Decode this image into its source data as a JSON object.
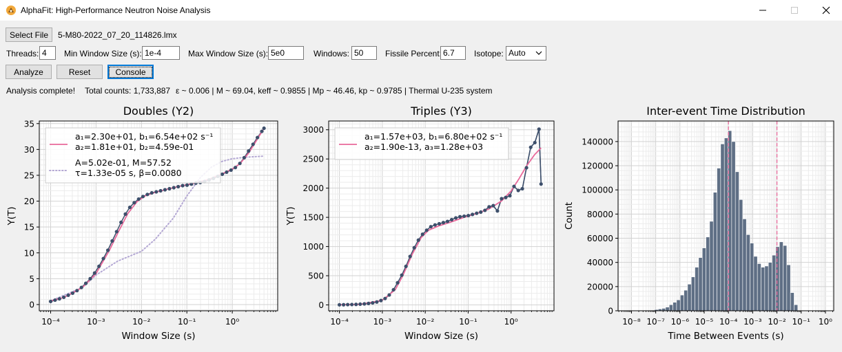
{
  "window": {
    "title": "AlphaFit: High-Performance Neutron Noise Analysis",
    "min_glyph": "—",
    "max_glyph": "☐",
    "close_glyph": "✕"
  },
  "file": {
    "button_label": "Select File",
    "filename": "5-M80-2022_07_20_114826.lmx"
  },
  "params": {
    "threads_label": "Threads:",
    "threads_value": "4",
    "min_window_label": "Min Window Size (s):",
    "min_window_value": "1e-4",
    "max_window_label": "Max Window Size (s):",
    "max_window_value": "5e0",
    "windows_label": "Windows:",
    "windows_value": "50",
    "fissile_label": "Fissile Percent:",
    "fissile_value": "6.7",
    "isotope_label": "Isotope:",
    "isotope_value": "Auto"
  },
  "actions": {
    "analyze_label": "Analyze",
    "reset_label": "Reset",
    "console_label": "Console"
  },
  "status": {
    "message": "Analysis complete!",
    "total_counts": "Total counts: 1,733,887",
    "summary": "ε ~ 0.006 | M ~ 69.04, keff ~ 0.9855 | Mp ~ 46.46, kp ~ 0.9785 | Thermal U-235 system"
  },
  "colors": {
    "fit": "#e8689a",
    "data": "#3d4f6b",
    "model": "#b3a7d3",
    "bar": "#5f6f85",
    "vline": "#e8689a"
  },
  "chart_data": [
    {
      "type": "line",
      "title": "Doubles (Y2)",
      "xlabel": "Window Size (s)",
      "ylabel": "Y(T)",
      "xscale": "log",
      "xlim": [
        5.62e-05,
        10
      ],
      "ylim": [
        -1.2,
        35.5
      ],
      "xticks": [
        0.0001,
        0.001,
        0.01,
        0.1,
        1
      ],
      "xtick_labels": [
        "10⁻⁴",
        "10⁻³",
        "10⁻²",
        "10⁻¹",
        "10⁰"
      ],
      "yticks": [
        0,
        5,
        10,
        15,
        20,
        25,
        30,
        35
      ],
      "ytick_labels": [
        "0",
        "5",
        "10",
        "15",
        "20",
        "25",
        "30",
        "35"
      ],
      "grid": true,
      "legend_position": "top-left",
      "legend": [
        {
          "label_line1": "a₁=2.30e+01, b₁=6.54e+02 s⁻¹",
          "label_line2": "a₂=1.81e+01, b₂=4.59e-01",
          "style": "solid"
        },
        {
          "label_line1": "A=5.02e-01, M=57.52",
          "label_line2": "τ=1.33e-05 s, β=0.0080",
          "style": "dotted"
        }
      ],
      "series": [
        {
          "style": "markers",
          "x": [
            0.0001,
            0.000125,
            0.000156,
            0.000195,
            0.000244,
            0.000305,
            0.000381,
            0.000476,
            0.000595,
            0.000744,
            0.00093,
            0.00116,
            0.00145,
            0.00182,
            0.00227,
            0.00284,
            0.00355,
            0.00444,
            0.00555,
            0.00693,
            0.00867,
            0.0108,
            0.0135,
            0.0169,
            0.0212,
            0.0264,
            0.033,
            0.0413,
            0.0516,
            0.0645,
            0.0807,
            0.101,
            0.126,
            0.158,
            0.197,
            0.246,
            0.308,
            0.385,
            0.481,
            0.601,
            0.751,
            0.939,
            1.17,
            1.47,
            1.83,
            2.29,
            2.87,
            3.58,
            4.48,
            5.0
          ],
          "y": [
            0.6,
            0.85,
            1.1,
            1.4,
            1.8,
            2.2,
            2.7,
            3.3,
            4.1,
            5.0,
            6.1,
            7.4,
            8.9,
            10.5,
            12.3,
            14.1,
            15.9,
            17.5,
            18.8,
            19.7,
            20.4,
            20.9,
            21.3,
            21.6,
            21.8,
            22.0,
            22.2,
            22.4,
            22.6,
            22.8,
            23.0,
            23.1,
            23.3,
            23.5,
            23.6,
            23.8,
            24.1,
            24.4,
            24.8,
            25.2,
            25.6,
            26.0,
            26.5,
            27.3,
            28.4,
            29.7,
            31.0,
            32.3,
            33.5,
            34.1
          ]
        },
        {
          "style": "fit",
          "x": [
            0.0001,
            0.0002,
            0.0005,
            0.001,
            0.002,
            0.003,
            0.005,
            0.008,
            0.012,
            0.02,
            0.04,
            0.08,
            0.15,
            0.3,
            0.6,
            1.0,
            1.5,
            2.3,
            3.5,
            5.0
          ],
          "y": [
            0.7,
            1.4,
            3.3,
            6.0,
            10.6,
            13.8,
            17.6,
            19.9,
            21.0,
            21.7,
            22.4,
            23.0,
            23.5,
            24.2,
            25.3,
            26.2,
            27.3,
            29.3,
            31.9,
            34.1
          ]
        },
        {
          "style": "dotted",
          "x": [
            0.0001,
            0.0005,
            0.001,
            0.003,
            0.01,
            0.02,
            0.05,
            0.1,
            0.2,
            0.35,
            0.6,
            1.0,
            2.0,
            5.0
          ],
          "y": [
            0.7,
            3.3,
            5.7,
            8.4,
            10.3,
            12.6,
            16.7,
            21.0,
            24.6,
            26.6,
            27.7,
            28.2,
            28.5,
            28.7
          ]
        }
      ]
    },
    {
      "type": "line",
      "title": "Triples (Y3)",
      "xlabel": "Window Size (s)",
      "ylabel": "Y(T)",
      "xscale": "log",
      "xlim": [
        5.62e-05,
        10
      ],
      "ylim": [
        -100,
        3150
      ],
      "xticks": [
        0.0001,
        0.001,
        0.01,
        0.1,
        1
      ],
      "xtick_labels": [
        "10⁻⁴",
        "10⁻³",
        "10⁻²",
        "10⁻¹",
        "10⁰"
      ],
      "yticks": [
        0,
        500,
        1000,
        1500,
        2000,
        2500,
        3000
      ],
      "ytick_labels": [
        "0",
        "500",
        "1000",
        "1500",
        "2000",
        "2500",
        "3000"
      ],
      "grid": true,
      "legend_position": "top-left",
      "legend": [
        {
          "label_line1": "a₁=1.57e+03, b₁=6.80e+02 s⁻¹",
          "label_line2": "a₂=1.90e-13, a₃=1.28e+03",
          "style": "solid"
        }
      ],
      "series": [
        {
          "style": "markers",
          "x": [
            0.0001,
            0.000125,
            0.000156,
            0.000195,
            0.000244,
            0.000305,
            0.000381,
            0.000476,
            0.000595,
            0.000744,
            0.00093,
            0.00116,
            0.00145,
            0.00182,
            0.00227,
            0.00284,
            0.00355,
            0.00444,
            0.00555,
            0.00693,
            0.00867,
            0.0108,
            0.0135,
            0.0169,
            0.0212,
            0.0264,
            0.033,
            0.0413,
            0.0516,
            0.0645,
            0.0807,
            0.101,
            0.126,
            0.158,
            0.197,
            0.246,
            0.308,
            0.385,
            0.481,
            0.601,
            0.751,
            0.939,
            1.17,
            1.47,
            1.83,
            2.29,
            2.87,
            3.58,
            4.48,
            5.0
          ],
          "y": [
            2,
            3,
            5,
            7,
            9,
            13,
            18,
            25,
            35,
            50,
            75,
            110,
            170,
            260,
            380,
            510,
            660,
            830,
            980,
            1110,
            1210,
            1280,
            1340,
            1370,
            1390,
            1410,
            1430,
            1460,
            1490,
            1510,
            1520,
            1530,
            1550,
            1570,
            1590,
            1620,
            1680,
            1700,
            1610,
            1820,
            1840,
            1870,
            2030,
            1960,
            1990,
            2350,
            2700,
            2780,
            3010,
            2070
          ]
        },
        {
          "style": "fit",
          "x": [
            0.0001,
            0.0003,
            0.001,
            0.002,
            0.003,
            0.005,
            0.008,
            0.012,
            0.02,
            0.04,
            0.08,
            0.15,
            0.3,
            0.6,
            1.0,
            1.5,
            2.3,
            3.5,
            5.0
          ],
          "y": [
            2,
            10,
            80,
            260,
            500,
            870,
            1150,
            1280,
            1350,
            1420,
            1500,
            1560,
            1640,
            1780,
            1950,
            2150,
            2380,
            2570,
            2690
          ]
        },
        {
          "style": "data-line",
          "x": [
            0.1,
            0.15,
            0.2,
            0.25,
            0.3,
            0.38,
            0.48,
            0.6,
            0.75,
            0.94,
            1.17,
            1.47,
            1.83,
            2.29,
            2.87,
            3.58,
            4.48,
            5.0
          ],
          "y": [
            1530,
            1560,
            1590,
            1620,
            1680,
            1700,
            1610,
            1820,
            1840,
            1870,
            2030,
            1960,
            1990,
            2350,
            2700,
            2780,
            3010,
            2070
          ]
        }
      ]
    },
    {
      "type": "bar",
      "title": "Inter-event Time Distribution",
      "xlabel": "Time Between Events (s)",
      "ylabel": "Count",
      "xscale": "log",
      "xlim": [
        2.8e-09,
        2.2
      ],
      "ylim": [
        0,
        157000
      ],
      "xticks": [
        1e-08,
        1e-07,
        1e-06,
        1e-05,
        0.0001,
        0.001,
        0.01,
        0.1,
        1
      ],
      "xtick_labels": [
        "10⁻⁸",
        "10⁻⁷",
        "10⁻⁶",
        "10⁻⁵",
        "10⁻⁴",
        "10⁻³",
        "10⁻²",
        "10⁻¹",
        "10⁰"
      ],
      "yticks": [
        0,
        20000,
        40000,
        60000,
        80000,
        100000,
        120000,
        140000
      ],
      "ytick_labels": [
        "0",
        "20000",
        "40000",
        "60000",
        "80000",
        "100000",
        "120000",
        "140000"
      ],
      "grid": true,
      "vlines": [
        0.0001,
        0.01
      ],
      "bin_edges_log10_start": -7.2,
      "bin_edges_log10_step": 0.1515,
      "values": [
        500,
        1000,
        1500,
        2000,
        3000,
        5000,
        7000,
        9000,
        13000,
        17000,
        22000,
        28000,
        36000,
        44000,
        52000,
        61000,
        74000,
        98000,
        118000,
        138000,
        143000,
        149000,
        140000,
        115000,
        92000,
        76000,
        63000,
        56000,
        45000,
        39000,
        36000,
        37000,
        40000,
        46000,
        53000,
        57000,
        54000,
        38000,
        15000,
        5000
      ]
    }
  ]
}
